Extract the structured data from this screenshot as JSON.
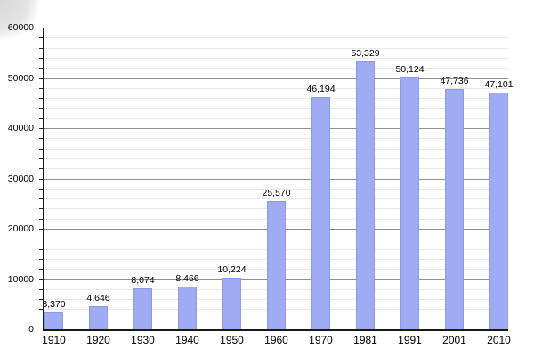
{
  "page": {
    "background": "#ffffff"
  },
  "corner_artifact": {
    "color": "#d8d8d8"
  },
  "chart_data": {
    "type": "bar",
    "title": "",
    "xlabel": "",
    "ylabel": "",
    "categories": [
      "1910",
      "1920",
      "1930",
      "1940",
      "1950",
      "1960",
      "1970",
      "1981",
      "1991",
      "2001",
      "2010"
    ],
    "values": [
      3370,
      4646,
      8074,
      8466,
      10224,
      25570,
      46194,
      53329,
      50124,
      47736,
      47101
    ],
    "value_labels": [
      "3,370",
      "4,646",
      "8,074",
      "8,466",
      "10,224",
      "25,570",
      "46,194",
      "53,329",
      "50,124",
      "47,736",
      "47,101"
    ],
    "ylim": [
      0,
      60000
    ],
    "y_major_step": 10000,
    "y_minor_step": 2000,
    "y_tick_labels": [
      "0",
      "10000",
      "20000",
      "30000",
      "40000",
      "50000",
      "60000"
    ],
    "grid": true,
    "legend": "none",
    "colors": {
      "bar_fill": "#9fabf2",
      "bar_border": "#8a99e8",
      "grid_major": "#8f8f8f",
      "grid_minor": "#e8e8e8",
      "axis": "#1a1a1a",
      "tick": "#222222",
      "label_text": "#000000"
    }
  }
}
